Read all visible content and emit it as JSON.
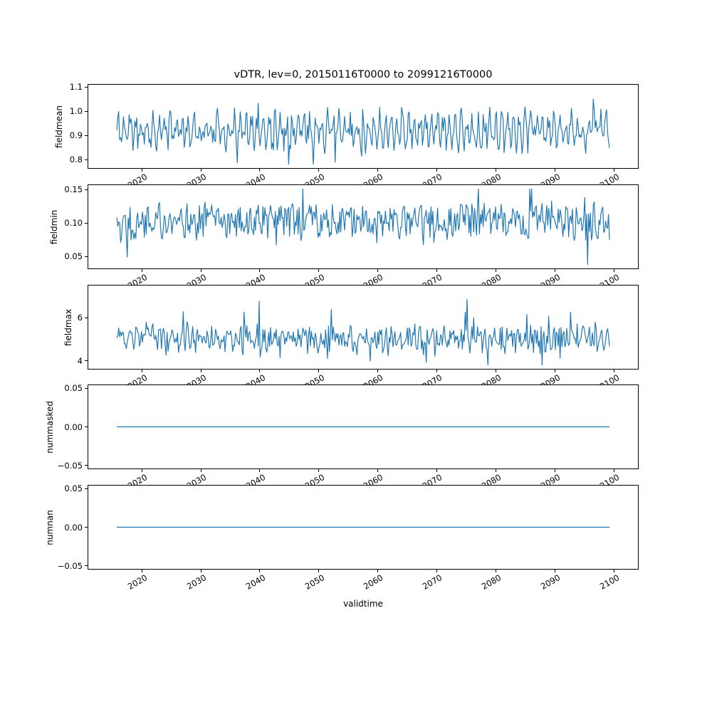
{
  "page": {
    "background": "#ffffff"
  },
  "chart_data": {
    "type": "line",
    "title": "vDTR, lev=0, 20150116T0000 to 20991216T0000",
    "xlabel": "validtime",
    "line_color": "#1f77b4",
    "grid": false,
    "legend": false,
    "x_start": 2015.04,
    "x_end": 2099.96,
    "x_axis_limits": [
      2010.8,
      2104.2
    ],
    "x_ticks": [
      2020,
      2030,
      2040,
      2050,
      2060,
      2070,
      2080,
      2090,
      2100
    ],
    "x_tick_labels": [
      "2020",
      "2030",
      "2040",
      "2050",
      "2060",
      "2070",
      "2080",
      "2090",
      "2100"
    ],
    "subplots": [
      {
        "ylabel": "fieldmean",
        "ylim": [
          0.762,
          1.112
        ],
        "ytick_values": [
          1.1,
          1.0,
          0.9,
          0.8
        ],
        "ytick_labels": [
          "1.1",
          "1.0",
          "0.9",
          "0.8"
        ],
        "summary": {
          "approx_mean": 0.92,
          "observed_min": 0.78,
          "observed_max": 1.1,
          "note": "dense noisy monthly series with regular seasonal peaks, 2015-2099"
        },
        "series": {
          "kind": "seasonal-noise",
          "n_points": 520,
          "seed": 11,
          "base": 0.92,
          "seasonal_amplitude": 0.05,
          "seasonal_period": 6.12,
          "noise_amplitude": 0.05,
          "spike_probability": 0.06,
          "spike_amplitude": 0.12,
          "min": 0.778,
          "max": 1.096
        }
      },
      {
        "ylabel": "fieldmin",
        "ylim": [
          0.031,
          0.158
        ],
        "ytick_values": [
          0.15,
          0.1,
          0.05
        ],
        "ytick_labels": [
          "0.15",
          "0.10",
          "0.05"
        ],
        "summary": {
          "approx_mean": 0.1,
          "observed_min": 0.04,
          "observed_max": 0.15,
          "note": "dense noisy series around 0.10, 2015-2099"
        },
        "series": {
          "kind": "seasonal-noise",
          "n_points": 520,
          "seed": 22,
          "base": 0.103,
          "seasonal_amplitude": 0.006,
          "seasonal_period": 6.12,
          "noise_amplitude": 0.024,
          "spike_probability": 0.06,
          "spike_amplitude": 0.05,
          "min": 0.037,
          "max": 0.152
        }
      },
      {
        "ylabel": "fieldmax",
        "ylim": [
          3.6,
          7.53
        ],
        "ytick_values": [
          6,
          4
        ],
        "ytick_labels": [
          "6",
          "4"
        ],
        "summary": {
          "approx_mean": 5.0,
          "observed_min": 3.8,
          "observed_max": 7.3,
          "note": "dense noisy series around 5 with occasional spikes above 7, 2015-2099"
        },
        "series": {
          "kind": "seasonal-noise",
          "n_points": 520,
          "seed": 33,
          "base": 5.0,
          "seasonal_amplitude": 0.2,
          "seasonal_period": 6.12,
          "noise_amplitude": 0.55,
          "spike_probability": 0.06,
          "spike_amplitude": 1.4,
          "min": 3.78,
          "max": 7.35
        }
      },
      {
        "ylabel": "nummasked",
        "ylim": [
          -0.055,
          0.055
        ],
        "ytick_values": [
          0.05,
          0.0,
          -0.05
        ],
        "ytick_labels": [
          "0.05",
          "0.00",
          "−0.05"
        ],
        "summary": {
          "constant_value": 0.0,
          "note": "flat line at 0.00 for entire period"
        },
        "series": {
          "kind": "constant",
          "value": 0.0,
          "n_points": 2
        }
      },
      {
        "ylabel": "numnan",
        "ylim": [
          -0.055,
          0.055
        ],
        "ytick_values": [
          0.05,
          0.0,
          -0.05
        ],
        "ytick_labels": [
          "0.05",
          "0.00",
          "−0.05"
        ],
        "summary": {
          "constant_value": 0.0,
          "note": "flat line at 0.00 for entire period"
        },
        "series": {
          "kind": "constant",
          "value": 0.0,
          "n_points": 2
        }
      }
    ]
  }
}
